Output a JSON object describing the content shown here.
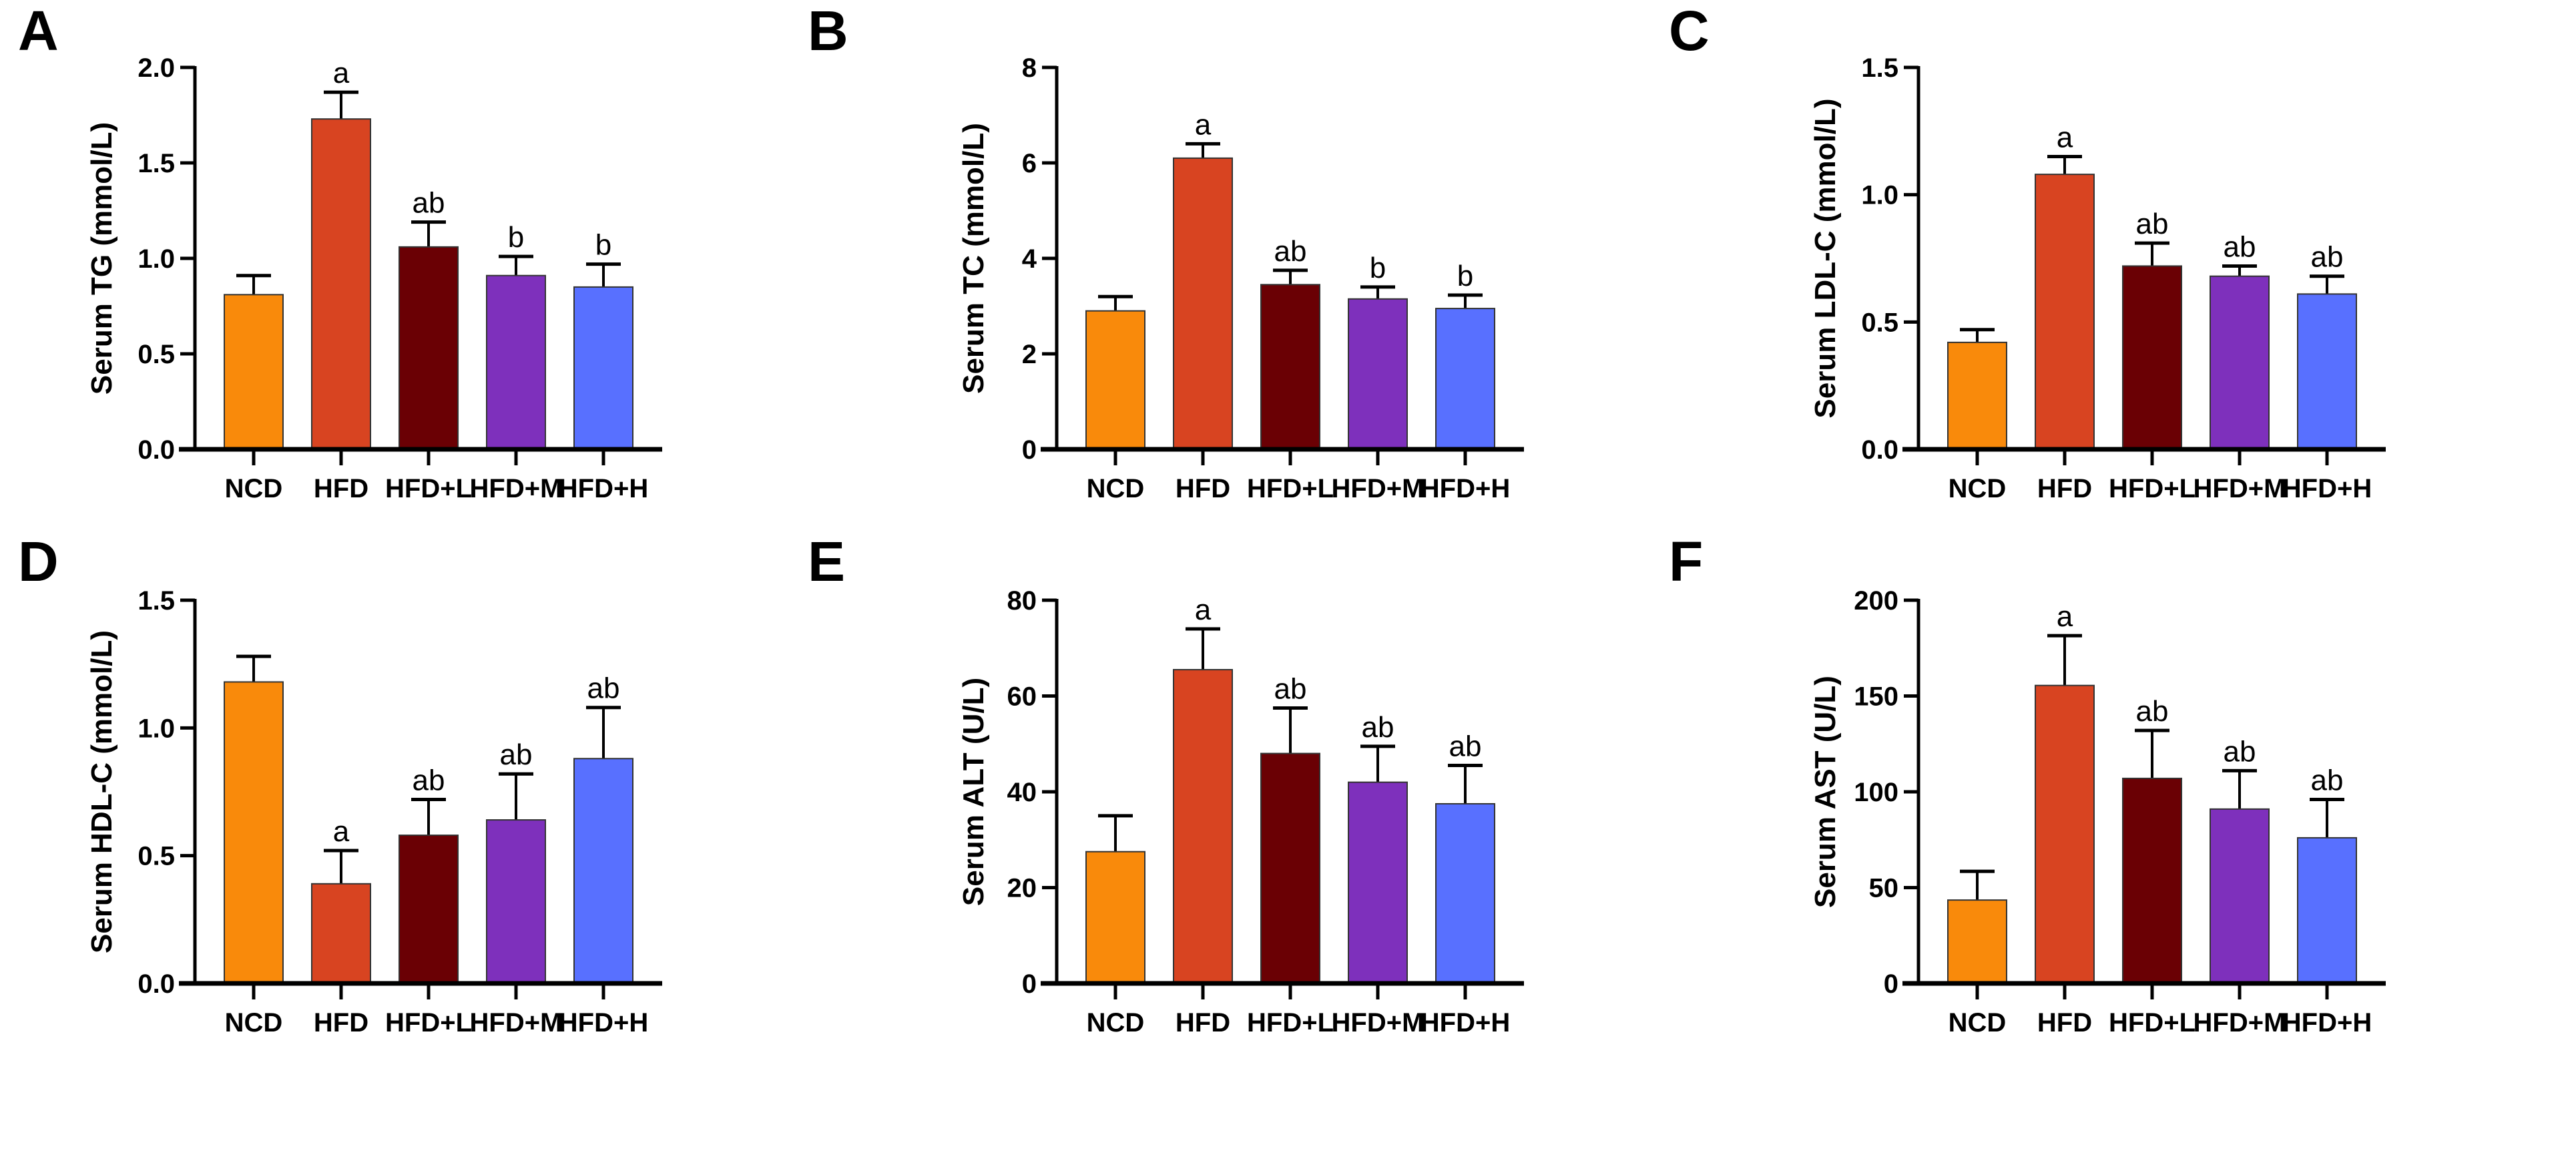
{
  "colors": [
    "#F98A0B",
    "#D84421",
    "#6A0004",
    "#7E30BC",
    "#5870FF"
  ],
  "chart_data": [
    {
      "type": "bar",
      "panel": "A",
      "ylabel": "Serum TG (mmol/L)",
      "ylim": [
        0,
        2
      ],
      "ticks": [
        "0.0",
        "0.5",
        "1.0",
        "1.5",
        "2.0"
      ],
      "tick_values": [
        0,
        0.5,
        1,
        1.5,
        2
      ],
      "categories": [
        "NCD",
        "HFD",
        "HFD+L",
        "HFD+M",
        "HFD+H"
      ],
      "values": [
        0.81,
        1.73,
        1.06,
        0.91,
        0.85
      ],
      "errors": [
        0.1,
        0.14,
        0.13,
        0.1,
        0.12
      ],
      "significance": [
        "",
        "a",
        "ab",
        "b",
        "b"
      ]
    },
    {
      "type": "bar",
      "panel": "B",
      "ylabel": "Serum TC (mmol/L)",
      "ylim": [
        0,
        8
      ],
      "ticks": [
        "0",
        "2",
        "4",
        "6",
        "8"
      ],
      "tick_values": [
        0,
        2,
        4,
        6,
        8
      ],
      "categories": [
        "NCD",
        "HFD",
        "HFD+L",
        "HFD+M",
        "HFD+H"
      ],
      "values": [
        2.9,
        6.1,
        3.45,
        3.15,
        2.95
      ],
      "errors": [
        0.3,
        0.3,
        0.3,
        0.25,
        0.28
      ],
      "significance": [
        "",
        "a",
        "ab",
        "b",
        "b"
      ]
    },
    {
      "type": "bar",
      "panel": "C",
      "ylabel": "Serum LDL-C (mmol/L)",
      "ylim": [
        0,
        1.5
      ],
      "ticks": [
        "0.0",
        "0.5",
        "1.0",
        "1.5"
      ],
      "tick_values": [
        0,
        0.5,
        1,
        1.5
      ],
      "categories": [
        "NCD",
        "HFD",
        "HFD+L",
        "HFD+M",
        "HFD+H"
      ],
      "values": [
        0.42,
        1.08,
        0.72,
        0.68,
        0.61
      ],
      "errors": [
        0.05,
        0.07,
        0.09,
        0.04,
        0.07
      ],
      "significance": [
        "",
        "a",
        "ab",
        "ab",
        "ab"
      ]
    },
    {
      "type": "bar",
      "panel": "D",
      "ylabel": "Serum HDL-C (mmol/L)",
      "ylim": [
        0,
        1.5
      ],
      "ticks": [
        "0.0",
        "0.5",
        "1.0",
        "1.5"
      ],
      "tick_values": [
        0,
        0.5,
        1,
        1.5
      ],
      "categories": [
        "NCD",
        "HFD",
        "HFD+L",
        "HFD+M",
        "HFD+H"
      ],
      "values": [
        1.18,
        0.39,
        0.58,
        0.64,
        0.88
      ],
      "errors": [
        0.1,
        0.13,
        0.14,
        0.18,
        0.2
      ],
      "significance": [
        "",
        "a",
        "ab",
        "ab",
        "ab"
      ]
    },
    {
      "type": "bar",
      "panel": "E",
      "ylabel": "Serum ALT (U/L)",
      "ylim": [
        0,
        80
      ],
      "ticks": [
        "0",
        "20",
        "40",
        "60",
        "80"
      ],
      "tick_values": [
        0,
        20,
        40,
        60,
        80
      ],
      "categories": [
        "NCD",
        "HFD",
        "HFD+L",
        "HFD+M",
        "HFD+H"
      ],
      "values": [
        27.5,
        65.5,
        48,
        42,
        37.5
      ],
      "errors": [
        7.5,
        8.5,
        9.5,
        7.5,
        8
      ],
      "significance": [
        "",
        "a",
        "ab",
        "ab",
        "ab"
      ]
    },
    {
      "type": "bar",
      "panel": "F",
      "ylabel": "Serum AST (U/L)",
      "ylim": [
        0,
        200
      ],
      "ticks": [
        "0",
        "50",
        "100",
        "150",
        "200"
      ],
      "tick_values": [
        0,
        50,
        100,
        150,
        200
      ],
      "categories": [
        "NCD",
        "HFD",
        "HFD+L",
        "HFD+M",
        "HFD+H"
      ],
      "values": [
        43.5,
        155.5,
        107,
        91,
        76
      ],
      "errors": [
        15,
        26,
        25,
        20,
        20
      ],
      "significance": [
        "",
        "a",
        "ab",
        "ab",
        "ab"
      ]
    }
  ]
}
